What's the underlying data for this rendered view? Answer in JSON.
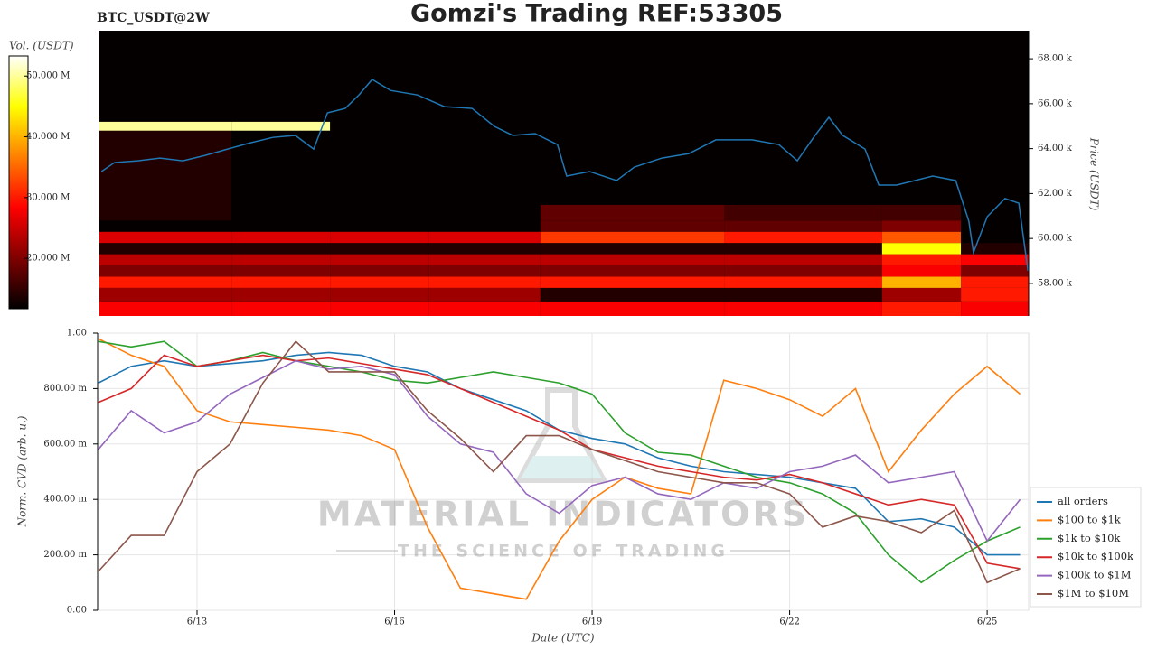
{
  "chart_data": [
    {
      "type": "heatmap",
      "title": "Gomzi's Trading REF:53305",
      "subtitle": "BTC_USDT@2W",
      "ylabel": "Price (USDT)",
      "xlim": [
        11.49,
        25.63
      ],
      "ylim": [
        56550,
        69250
      ],
      "yticks": [
        {
          "value": 58000,
          "label": "58.00 k"
        },
        {
          "value": 60000,
          "label": "60.00 k"
        },
        {
          "value": 62000,
          "label": "62.00 k"
        },
        {
          "value": 64000,
          "label": "64.00 k"
        },
        {
          "value": 66000,
          "label": "66.00 k"
        },
        {
          "value": 68000,
          "label": "68.00 k"
        }
      ],
      "x_edges": [
        11.49,
        13.5,
        15,
        16.5,
        18.2,
        21,
        23.4,
        24.6,
        25.63
      ],
      "y_edges": [
        56550,
        57200,
        57800,
        58300,
        58800,
        59300,
        59800,
        60300,
        60800,
        61500,
        64800,
        65200,
        69250
      ],
      "values": [
        [
          28000000,
          28000000,
          28000000,
          28000000,
          28000000,
          28000000,
          30000000,
          28000000
        ],
        [
          22000000,
          22000000,
          22000000,
          22000000,
          14000000,
          14000000,
          22000000,
          30000000
        ],
        [
          30000000,
          30000000,
          30000000,
          30000000,
          30000000,
          30000000,
          40000000,
          30000000
        ],
        [
          20000000,
          20000000,
          20000000,
          20000000,
          20000000,
          20000000,
          28000000,
          20000000
        ],
        [
          24000000,
          24000000,
          24000000,
          24000000,
          24000000,
          24000000,
          30000000,
          28000000
        ],
        [
          14000000,
          14000000,
          14000000,
          14000000,
          14000000,
          14000000,
          45000000,
          14000000
        ],
        [
          26000000,
          26000000,
          26000000,
          26000000,
          32000000,
          30000000,
          34000000,
          12000000
        ],
        [
          12000000,
          12000000,
          12000000,
          12000000,
          18000000,
          18000000,
          20000000,
          12000000
        ],
        [
          14000000,
          12000000,
          12000000,
          12000000,
          18000000,
          16000000,
          16000000,
          12000000
        ],
        [
          14000000,
          12000000,
          12000000,
          12000000,
          12000000,
          12000000,
          12000000,
          12000000
        ],
        [
          50000000,
          50000000,
          12000000,
          12000000,
          12000000,
          12000000,
          12000000,
          12000000
        ],
        [
          12000000,
          12000000,
          12000000,
          12000000,
          12000000,
          12000000,
          12000000,
          12000000
        ]
      ],
      "colorbar": {
        "label": "Vol. (USDT)",
        "lim": [
          11700000,
          53300000
        ],
        "ticks": [
          {
            "value": 20000000,
            "label": "20.000 M"
          },
          {
            "value": 30000000,
            "label": "30.000 M"
          },
          {
            "value": 40000000,
            "label": "40.000 M"
          },
          {
            "value": 50000000,
            "label": "50.000 M"
          }
        ]
      },
      "price": {
        "color": "#1f77b4",
        "x": [
          11.52,
          11.72,
          12.07,
          12.41,
          12.76,
          13.1,
          13.44,
          13.79,
          14.13,
          14.47,
          14.75,
          14.96,
          15.23,
          15.44,
          15.64,
          15.92,
          16.33,
          16.74,
          17.16,
          17.5,
          17.78,
          18.12,
          18.46,
          18.6,
          18.95,
          19.36,
          19.63,
          20.05,
          20.46,
          20.87,
          21.42,
          21.83,
          22.11,
          22.38,
          22.59,
          22.8,
          23.14,
          23.35,
          23.62,
          23.9,
          24.17,
          24.52,
          24.72,
          24.79,
          25.0,
          25.27,
          25.48,
          25.62
        ],
        "values": [
          62980,
          63380,
          63460,
          63580,
          63460,
          63700,
          63980,
          64260,
          64500,
          64590,
          63980,
          65590,
          65790,
          66390,
          67080,
          66590,
          66390,
          65870,
          65790,
          64990,
          64590,
          64670,
          64180,
          62780,
          62980,
          62580,
          63180,
          63580,
          63780,
          64390,
          64390,
          64180,
          63460,
          64590,
          65390,
          64590,
          63980,
          62380,
          62380,
          62580,
          62780,
          62580,
          60770,
          59370,
          60970,
          61780,
          61570,
          58560
        ]
      }
    },
    {
      "type": "line",
      "ylabel": "Norm. CVD (arb. u.)",
      "xlabel": "Date (UTC)",
      "xlim": [
        11.49,
        25.63
      ],
      "xticks": [
        {
          "value": 13,
          "label": "6/13"
        },
        {
          "value": 16,
          "label": "6/16"
        },
        {
          "value": 19,
          "label": "6/19"
        },
        {
          "value": 22,
          "label": "6/22"
        },
        {
          "value": 25,
          "label": "6/25"
        }
      ],
      "ylim": [
        0,
        1
      ],
      "yticks": [
        {
          "value": 0,
          "label": "0.00"
        },
        {
          "value": 0.2,
          "label": "200.00 m"
        },
        {
          "value": 0.4,
          "label": "400.00 m"
        },
        {
          "value": 0.6,
          "label": "600.00 m"
        },
        {
          "value": 0.8,
          "label": "800.00 m"
        },
        {
          "value": 1,
          "label": "1.00"
        }
      ],
      "grid": true,
      "legend": "lower right",
      "x": [
        11.5,
        12,
        12.5,
        13,
        13.5,
        14,
        14.5,
        15,
        15.5,
        16,
        16.5,
        17,
        17.5,
        18,
        18.5,
        19,
        19.5,
        20,
        20.5,
        21,
        21.5,
        22,
        22.5,
        23,
        23.5,
        24,
        24.5,
        25,
        25.5
      ],
      "series": [
        {
          "name": "all orders",
          "color": "#1f77b4",
          "values": [
            0.82,
            0.88,
            0.9,
            0.88,
            0.89,
            0.9,
            0.92,
            0.93,
            0.92,
            0.88,
            0.86,
            0.8,
            0.76,
            0.72,
            0.65,
            0.62,
            0.6,
            0.55,
            0.52,
            0.5,
            0.49,
            0.48,
            0.46,
            0.44,
            0.32,
            0.33,
            0.3,
            0.2,
            0.2
          ]
        },
        {
          "name": "$100 to $1k",
          "color": "#ff7f0e",
          "values": [
            0.98,
            0.92,
            0.88,
            0.72,
            0.68,
            0.67,
            0.66,
            0.65,
            0.63,
            0.58,
            0.3,
            0.08,
            0.06,
            0.04,
            0.25,
            0.4,
            0.48,
            0.44,
            0.42,
            0.83,
            0.8,
            0.76,
            0.7,
            0.8,
            0.5,
            0.65,
            0.78,
            0.88,
            0.78
          ]
        },
        {
          "name": "$1k to $10k",
          "color": "#2ca02c",
          "values": [
            0.97,
            0.95,
            0.97,
            0.88,
            0.9,
            0.93,
            0.9,
            0.88,
            0.86,
            0.83,
            0.82,
            0.84,
            0.86,
            0.84,
            0.82,
            0.78,
            0.64,
            0.57,
            0.56,
            0.52,
            0.48,
            0.46,
            0.42,
            0.35,
            0.2,
            0.1,
            0.18,
            0.25,
            0.3
          ]
        },
        {
          "name": "$10k to $100k",
          "color": "#d62728",
          "values": [
            0.75,
            0.8,
            0.92,
            0.88,
            0.9,
            0.92,
            0.9,
            0.91,
            0.89,
            0.87,
            0.85,
            0.8,
            0.75,
            0.7,
            0.65,
            0.58,
            0.55,
            0.52,
            0.5,
            0.48,
            0.47,
            0.49,
            0.46,
            0.42,
            0.38,
            0.4,
            0.38,
            0.17,
            0.15
          ]
        },
        {
          "name": "$100k to $1M",
          "color": "#9467bd",
          "values": [
            0.58,
            0.72,
            0.64,
            0.68,
            0.78,
            0.84,
            0.9,
            0.87,
            0.88,
            0.85,
            0.7,
            0.6,
            0.57,
            0.42,
            0.35,
            0.45,
            0.48,
            0.42,
            0.4,
            0.46,
            0.44,
            0.5,
            0.52,
            0.56,
            0.46,
            0.48,
            0.5,
            0.25,
            0.4
          ]
        },
        {
          "name": "$1M to $10M",
          "color": "#8c564b",
          "values": [
            0.14,
            0.27,
            0.27,
            0.5,
            0.6,
            0.82,
            0.97,
            0.86,
            0.86,
            0.86,
            0.72,
            0.62,
            0.5,
            0.63,
            0.63,
            0.58,
            0.54,
            0.5,
            0.48,
            0.46,
            0.46,
            0.42,
            0.3,
            0.34,
            0.32,
            0.28,
            0.36,
            0.1,
            0.15
          ]
        }
      ]
    }
  ],
  "watermark": {
    "title": "MATERIAL INDICATORS",
    "subtitle": "THE SCIENCE OF TRADING"
  }
}
